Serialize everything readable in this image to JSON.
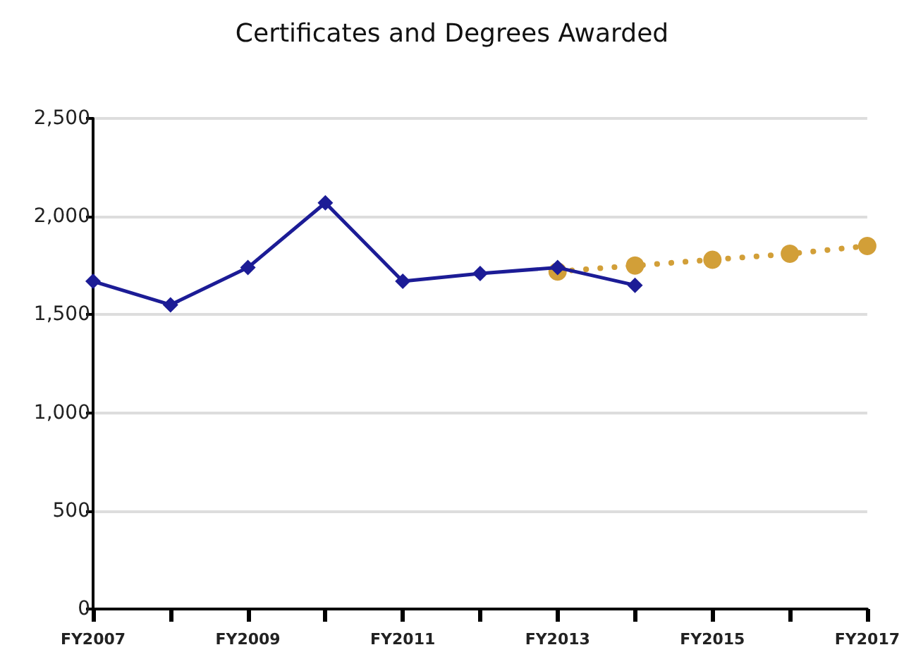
{
  "chart_data": {
    "type": "line",
    "title": "Certificates and Degrees Awarded",
    "categories": [
      "FY2007",
      null,
      "FY2009",
      null,
      "FY2011",
      null,
      "FY2013",
      null,
      "FY2015",
      null,
      "FY2017"
    ],
    "series": [
      {
        "color": "#1c1c96",
        "marker": "diamond",
        "line_style": "solid",
        "values": [
          1670,
          1550,
          1740,
          2070,
          1670,
          1710,
          1740,
          1650,
          null,
          null,
          null
        ]
      },
      {
        "color": "#d29f38",
        "marker": "circle",
        "line_style": "dotted",
        "values": [
          null,
          null,
          null,
          null,
          null,
          null,
          1720,
          1750,
          1780,
          1810,
          1850
        ]
      }
    ],
    "ylim": [
      0,
      2500
    ],
    "yticks": [
      0,
      500,
      {
        "value": 1000,
        "label": "1,000"
      },
      {
        "value": 1500,
        "label": "1,500"
      },
      {
        "value": 2000,
        "label": "2,000"
      },
      {
        "value": 2500,
        "label": "2,500"
      }
    ],
    "grid": "y"
  }
}
